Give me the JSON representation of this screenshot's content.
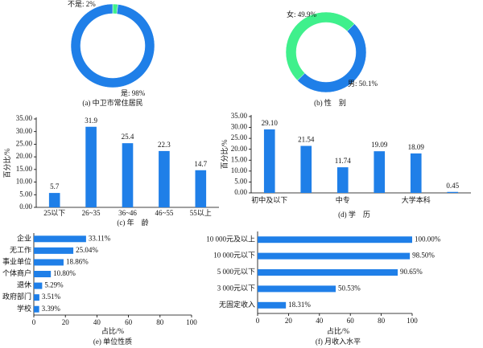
{
  "chart_data": [
    {
      "type": "pie",
      "caption": "(a) 中卫市常住居民",
      "values": [
        2,
        98
      ],
      "value_labels": [
        "不是: 2%",
        "是: 98%"
      ],
      "colors": [
        "#3ff08c",
        "#1f7fe8"
      ]
    },
    {
      "type": "pie",
      "caption": "(b) 性　别",
      "values": [
        50.1,
        49.9
      ],
      "value_labels": [
        "男: 50.1%",
        "女: 49.9%"
      ],
      "colors": [
        "#1f7fe8",
        "#3ff08c"
      ]
    },
    {
      "type": "bar",
      "caption": "(c) 年　龄",
      "ylabel": "百分比/%",
      "categories": [
        "25以下",
        "26~35",
        "36~46",
        "46~55",
        "55以上"
      ],
      "values": [
        5.7,
        31.9,
        25.4,
        22.3,
        14.7
      ],
      "color": "#1f7fe8",
      "ylim": [
        0,
        35
      ],
      "yticks": [
        {
          "value": 0,
          "label": "0.00"
        },
        {
          "value": 5,
          "label": "5.00"
        },
        {
          "value": 10,
          "label": "10.00"
        },
        {
          "value": 15,
          "label": "15.00"
        },
        {
          "value": 20,
          "label": "20.00"
        },
        {
          "value": 25,
          "label": "25.00"
        },
        {
          "value": 30,
          "label": "30.00"
        },
        {
          "value": 35,
          "label": "35.00"
        }
      ]
    },
    {
      "type": "bar",
      "caption": "(d) 学　历",
      "ylabel": "百分比/%",
      "categories": [
        "初中及以下",
        null,
        "中专",
        null,
        "大学本科",
        null
      ],
      "values": [
        29.1,
        21.54,
        11.74,
        19.09,
        18.09,
        0.45
      ],
      "value_labels": [
        "29.10",
        "21.54",
        "11.74",
        "19.09",
        "18.09",
        "0.45"
      ],
      "color": "#1f7fe8",
      "ylim": [
        0,
        35
      ],
      "yticks": [
        {
          "value": 0,
          "label": "0.00"
        },
        {
          "value": 5,
          "label": "5.00"
        },
        {
          "value": 10,
          "label": "10.00"
        },
        {
          "value": 15,
          "label": "15.00"
        },
        {
          "value": 20,
          "label": "20.00"
        },
        {
          "value": 25,
          "label": "25.00"
        },
        {
          "value": 30,
          "label": "30.00"
        },
        {
          "value": 35,
          "label": "35.00"
        }
      ]
    },
    {
      "type": "barh",
      "caption": "(e) 单位性质",
      "xlabel": "占比/%",
      "categories": [
        "企业",
        "无工作",
        "事业单位",
        "个体商户",
        "退休",
        "政府部门",
        "学校"
      ],
      "values": [
        33.11,
        25.04,
        18.86,
        10.8,
        5.29,
        3.51,
        3.39
      ],
      "value_labels": [
        "33.11%",
        "25.04%",
        "18.86%",
        "10.80%",
        "5.29%",
        "3.51%",
        "3.39%"
      ],
      "color": "#1f7fe8",
      "xlim": [
        0,
        100
      ],
      "xticks": [
        0,
        20,
        40,
        60,
        80,
        100
      ]
    },
    {
      "type": "barh",
      "caption": "(f) 月收入水平",
      "xlabel": "占比/%",
      "categories": [
        "10 000元及以上",
        "10 000元以下",
        "5 000元以下",
        "3 000元以下",
        "无固定收入"
      ],
      "values": [
        100,
        98.5,
        90.65,
        50.53,
        18.31
      ],
      "value_labels": [
        "100.00%",
        "98.50%",
        "90.65%",
        "50.53%",
        "18.31%"
      ],
      "color": "#1f7fe8",
      "xlim": [
        0,
        100
      ],
      "xticks": [
        0,
        20,
        40,
        60,
        80,
        100
      ]
    }
  ]
}
